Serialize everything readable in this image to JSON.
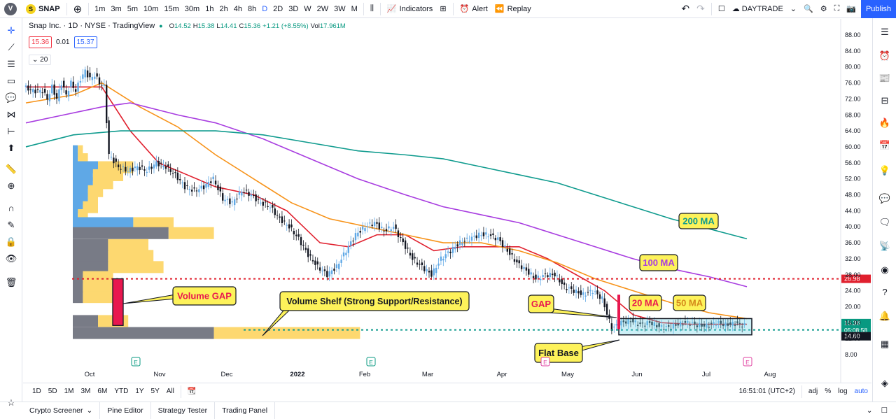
{
  "topbar": {
    "logo": "V",
    "symbol_badge": "S",
    "symbol": "SNAP",
    "intervals": [
      "1m",
      "3m",
      "5m",
      "10m",
      "15m",
      "30m",
      "1h",
      "2h",
      "4h",
      "8h",
      "D",
      "2D",
      "3D",
      "W",
      "2W",
      "3W",
      "M"
    ],
    "active_interval": "D",
    "indicators_label": "Indicators",
    "alert_label": "Alert",
    "replay_label": "Replay",
    "layout_name": "DAYTRADE",
    "publish_label": "Publish"
  },
  "legend": {
    "title": "Snap Inc. · 1D · NYSE · TradingView",
    "o_label": "O",
    "o": "14.52",
    "h_label": "H",
    "h": "15.38",
    "l_label": "L",
    "l": "14.41",
    "c_label": "C",
    "c": "15.36",
    "change": "+1.21 (+8.55%)",
    "vol_label": "Vol",
    "vol": "17.961M",
    "bid": "15.36",
    "spread": "0.01",
    "ask": "15.37",
    "ma_length": "20"
  },
  "chart_data": {
    "type": "candlestick",
    "title": "Snap Inc. · 1D · NYSE · TradingView",
    "ylim": [
      6,
      90
    ],
    "y_ticks": [
      "88.00",
      "84.00",
      "80.00",
      "76.00",
      "72.00",
      "68.00",
      "64.00",
      "60.00",
      "56.00",
      "52.00",
      "48.00",
      "44.00",
      "40.00",
      "36.00",
      "32.00",
      "28.00",
      "24.00",
      "20.00",
      "16.00",
      "12.00",
      "8.00"
    ],
    "x_ticks": [
      "Oct",
      "Nov",
      "Dec",
      "2022",
      "Feb",
      "Mar",
      "Apr",
      "May",
      "Jun",
      "Jul",
      "Aug"
    ],
    "price_labels": {
      "current": "15.36",
      "countdown": "05:08:58",
      "low": "14.60",
      "resistance": "26.98"
    },
    "price_path": [
      [
        0,
        75
      ],
      [
        4,
        74
      ],
      [
        8,
        74
      ],
      [
        10,
        72
      ],
      [
        12,
        75
      ],
      [
        14,
        72
      ],
      [
        16,
        76
      ],
      [
        18,
        73
      ],
      [
        20,
        76
      ],
      [
        22,
        74
      ],
      [
        24,
        77
      ],
      [
        26,
        79
      ],
      [
        28,
        77
      ],
      [
        30,
        78
      ],
      [
        32,
        76
      ],
      [
        34,
        75
      ],
      [
        36,
        58
      ],
      [
        40,
        55
      ],
      [
        44,
        54
      ],
      [
        48,
        55
      ],
      [
        52,
        54
      ],
      [
        56,
        56
      ],
      [
        60,
        55
      ],
      [
        64,
        53
      ],
      [
        68,
        50
      ],
      [
        72,
        49
      ],
      [
        76,
        50
      ],
      [
        80,
        52
      ],
      [
        84,
        47
      ],
      [
        88,
        46
      ],
      [
        92,
        49
      ],
      [
        96,
        48
      ],
      [
        100,
        46
      ],
      [
        104,
        45
      ],
      [
        108,
        42
      ],
      [
        112,
        40
      ],
      [
        116,
        37
      ],
      [
        120,
        33
      ],
      [
        124,
        30
      ],
      [
        128,
        28
      ],
      [
        132,
        30
      ],
      [
        136,
        34
      ],
      [
        140,
        38
      ],
      [
        144,
        40
      ],
      [
        148,
        41
      ],
      [
        152,
        39
      ],
      [
        156,
        40
      ],
      [
        160,
        36
      ],
      [
        164,
        32
      ],
      [
        168,
        30
      ],
      [
        172,
        28
      ],
      [
        176,
        32
      ],
      [
        180,
        34
      ],
      [
        184,
        36
      ],
      [
        188,
        37
      ],
      [
        192,
        38
      ],
      [
        196,
        38
      ],
      [
        200,
        37
      ],
      [
        204,
        34
      ],
      [
        208,
        31
      ],
      [
        212,
        29
      ],
      [
        216,
        27
      ],
      [
        220,
        28
      ],
      [
        224,
        28
      ],
      [
        228,
        25
      ],
      [
        232,
        24
      ],
      [
        236,
        23
      ],
      [
        240,
        24
      ],
      [
        244,
        22
      ],
      [
        248,
        14.5
      ],
      [
        252,
        16
      ],
      [
        256,
        16.5
      ],
      [
        260,
        15.5
      ],
      [
        264,
        16
      ],
      [
        268,
        15
      ],
      [
        272,
        14.8
      ],
      [
        276,
        15.6
      ],
      [
        280,
        16
      ],
      [
        284,
        15.4
      ],
      [
        288,
        15.2
      ],
      [
        292,
        16
      ],
      [
        296,
        15.5
      ],
      [
        300,
        15.8
      ],
      [
        304,
        15.36
      ]
    ],
    "moving_averages": [
      {
        "name": "20 MA",
        "color": "#e0202e",
        "points": [
          [
            0,
            75
          ],
          [
            20,
            75
          ],
          [
            32,
            75
          ],
          [
            44,
            64
          ],
          [
            56,
            56
          ],
          [
            68,
            53
          ],
          [
            80,
            50
          ],
          [
            96,
            48
          ],
          [
            110,
            44
          ],
          [
            124,
            36
          ],
          [
            136,
            35
          ],
          [
            148,
            38
          ],
          [
            160,
            38
          ],
          [
            172,
            34
          ],
          [
            184,
            35
          ],
          [
            196,
            35
          ],
          [
            208,
            35
          ],
          [
            220,
            32
          ],
          [
            232,
            28
          ],
          [
            244,
            24
          ],
          [
            256,
            18
          ],
          [
            268,
            16
          ],
          [
            280,
            15.6
          ],
          [
            304,
            15.6
          ]
        ]
      },
      {
        "name": "50 MA",
        "color": "#f7931a",
        "points": [
          [
            0,
            71
          ],
          [
            20,
            73
          ],
          [
            32,
            76
          ],
          [
            48,
            70
          ],
          [
            64,
            65
          ],
          [
            80,
            58
          ],
          [
            96,
            52
          ],
          [
            112,
            46
          ],
          [
            128,
            42
          ],
          [
            144,
            40
          ],
          [
            160,
            38
          ],
          [
            176,
            36
          ],
          [
            192,
            36
          ],
          [
            208,
            34
          ],
          [
            224,
            31
          ],
          [
            240,
            27
          ],
          [
            256,
            24
          ],
          [
            272,
            21
          ],
          [
            288,
            18.5
          ],
          [
            304,
            17
          ]
        ]
      },
      {
        "name": "100 MA",
        "color": "#a83de0",
        "points": [
          [
            0,
            66
          ],
          [
            16,
            68
          ],
          [
            32,
            70
          ],
          [
            44,
            71
          ],
          [
            64,
            68
          ],
          [
            80,
            66
          ],
          [
            100,
            62
          ],
          [
            120,
            57
          ],
          [
            140,
            52
          ],
          [
            160,
            48
          ],
          [
            176,
            45
          ],
          [
            192,
            43
          ],
          [
            208,
            41
          ],
          [
            224,
            38
          ],
          [
            240,
            35
          ],
          [
            256,
            32
          ],
          [
            272,
            29.5
          ],
          [
            288,
            27.5
          ],
          [
            304,
            25
          ]
        ]
      },
      {
        "name": "200 MA",
        "color": "#0f9b8e",
        "points": [
          [
            0,
            60
          ],
          [
            20,
            63
          ],
          [
            40,
            64
          ],
          [
            60,
            64
          ],
          [
            80,
            64
          ],
          [
            100,
            63
          ],
          [
            120,
            61
          ],
          [
            140,
            59
          ],
          [
            160,
            58
          ],
          [
            176,
            57
          ],
          [
            192,
            55
          ],
          [
            208,
            53
          ],
          [
            224,
            51
          ],
          [
            240,
            48
          ],
          [
            256,
            45
          ],
          [
            272,
            42
          ],
          [
            288,
            39.5
          ],
          [
            304,
            37
          ]
        ]
      }
    ],
    "volume_profile_levels": [
      "58",
      "56",
      "54",
      "52",
      "50",
      "48",
      "46",
      "44",
      "42",
      "40",
      "38",
      "36",
      "34",
      "32",
      "30",
      "28",
      "26",
      "24",
      "22",
      "20",
      "18",
      "16",
      "14"
    ],
    "volume_profile": [
      {
        "price": 59,
        "blue": 1,
        "yellow": 1
      },
      {
        "price": 57,
        "blue": 1,
        "yellow": 2
      },
      {
        "price": 55,
        "blue": 5,
        "yellow": 7
      },
      {
        "price": 53,
        "blue": 4,
        "yellow": 6
      },
      {
        "price": 51,
        "blue": 4,
        "yellow": 4
      },
      {
        "price": 49,
        "blue": 3,
        "yellow": 3
      },
      {
        "price": 47,
        "blue": 3,
        "yellow": 2
      },
      {
        "price": 45,
        "blue": 2,
        "yellow": 3
      },
      {
        "price": 43,
        "blue": 1,
        "yellow": 2
      },
      {
        "price": 41,
        "blue": 12,
        "yellow": 8
      },
      {
        "price": 38.5,
        "gray": 19,
        "yellow": 9
      },
      {
        "price": 35.5,
        "gray": 7,
        "yellow": 8
      },
      {
        "price": 32.8,
        "gray": 7,
        "yellow": 9
      },
      {
        "price": 30,
        "gray": 7,
        "yellow": 11
      },
      {
        "price": 27.5,
        "gray": 2,
        "yellow": 6
      },
      {
        "price": 25,
        "gray": 2,
        "yellow": 6
      },
      {
        "price": 22.5,
        "gray": 2,
        "yellow": 6
      },
      {
        "price": 16.5,
        "gray": 5,
        "yellow": 6
      },
      {
        "price": 13.5,
        "gray": 28,
        "yellow": 29
      }
    ],
    "annotations": [
      "Volume GAP",
      "Volume Shelf (Strong Support/Resistance)",
      "GAP",
      "20 MA",
      "50 MA",
      "100 MA",
      "200 MA",
      "Flat Base"
    ],
    "earnings_markers": [
      {
        "label": "E",
        "kind": "earnings"
      },
      {
        "label": "E",
        "kind": "earnings"
      },
      {
        "label": "E",
        "kind": "dividend"
      },
      {
        "label": "E",
        "kind": "upcoming"
      }
    ],
    "support_level": 26.98,
    "shelf_level": 14.2,
    "flat_base": {
      "low": 14.0,
      "high": 16.5
    }
  },
  "rangebar": {
    "ranges": [
      "1D",
      "5D",
      "1M",
      "3M",
      "6M",
      "YTD",
      "1Y",
      "5Y",
      "All"
    ],
    "clock": "16:51:01 (UTC+2)",
    "opts": [
      "adj",
      "%",
      "log",
      "auto"
    ]
  },
  "bottomtabs": [
    "Crypto Screener",
    "Pine Editor",
    "Strategy Tester",
    "Trading Panel"
  ]
}
